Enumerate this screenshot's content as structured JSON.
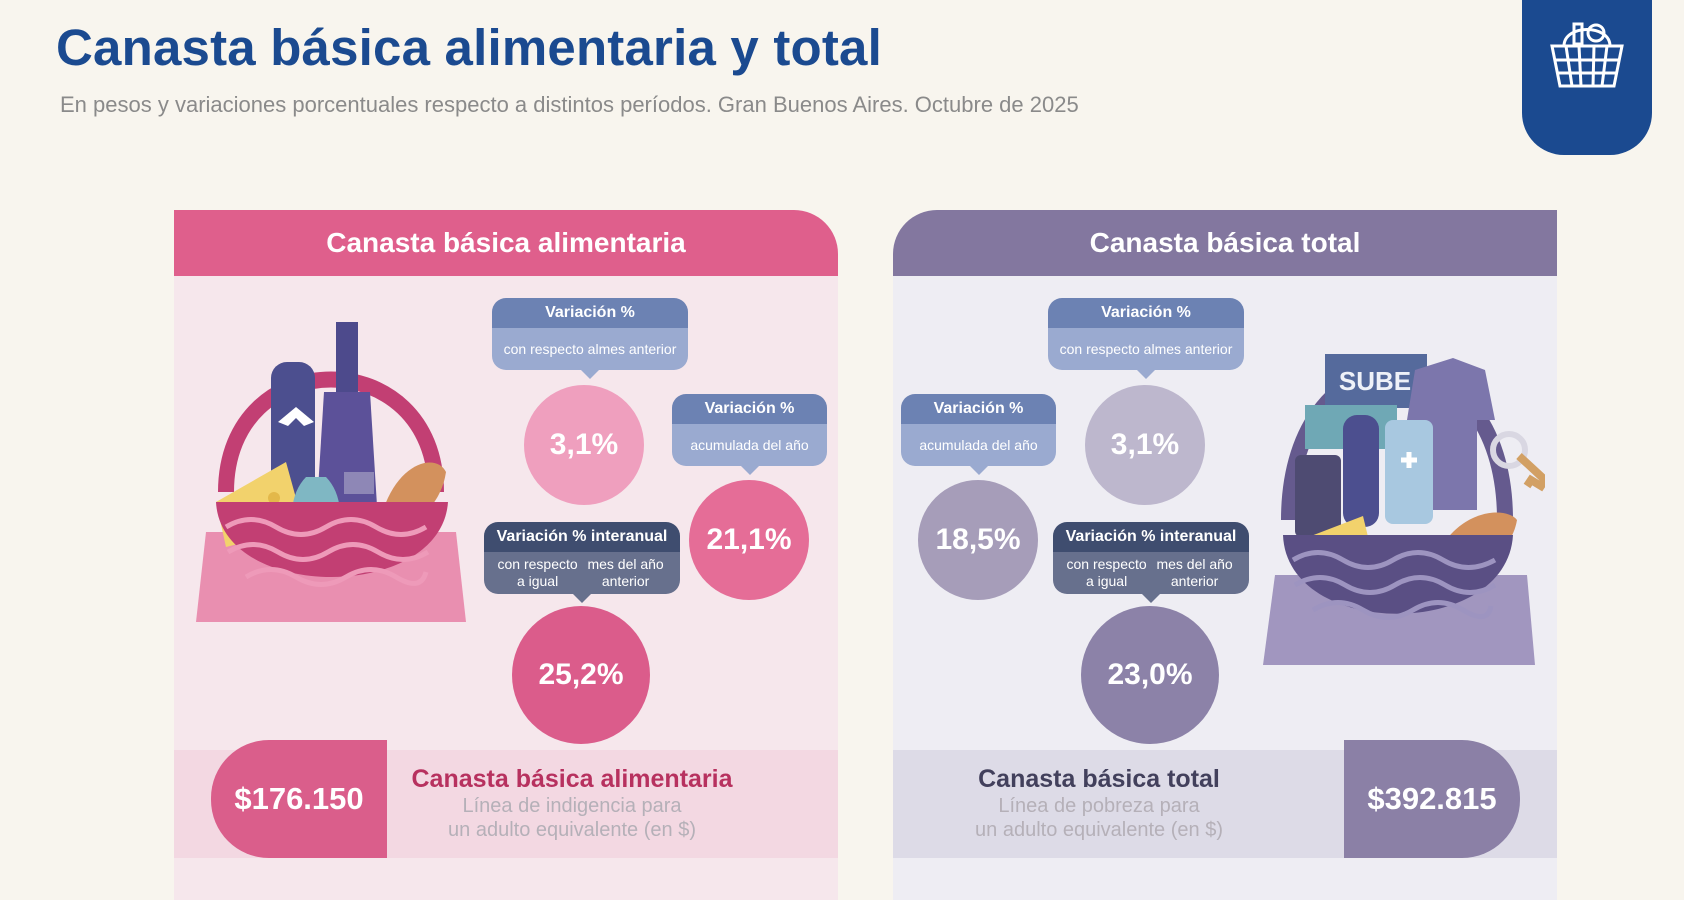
{
  "header": {
    "title": "Canasta básica alimentaria y total",
    "subtitle": "En pesos y variaciones porcentuales respecto a distintos períodos. Gran Buenos Aires. Octubre de 2025",
    "logo_icon": "shopping-basket-icon"
  },
  "left_panel": {
    "title": "Canasta básica alimentaria",
    "monthly": {
      "tag_title": "Variación %",
      "tag_lines": [
        "con respecto al",
        "mes anterior"
      ],
      "value": "3,1%"
    },
    "ytd": {
      "tag_title": "Variación %",
      "tag_lines": [
        "acumulada del año"
      ],
      "value": "21,1%"
    },
    "yoy": {
      "tag_title": "Variación % interanual",
      "tag_lines": [
        "con respecto a igual",
        "mes del año anterior"
      ],
      "value": "25,2%"
    },
    "price": "$176.150",
    "label_main": "Canasta básica alimentaria",
    "label_lines": [
      "Línea de indigencia para",
      "un adulto equivalente (en $)"
    ]
  },
  "right_panel": {
    "title": "Canasta básica total",
    "monthly": {
      "tag_title": "Variación %",
      "tag_lines": [
        "con respecto al",
        "mes anterior"
      ],
      "value": "3,1%"
    },
    "ytd": {
      "tag_title": "Variación %",
      "tag_lines": [
        "acumulada del año"
      ],
      "value": "18,5%"
    },
    "yoy": {
      "tag_title": "Variación % interanual",
      "tag_lines": [
        "con respecto a igual",
        "mes del año anterior"
      ],
      "value": "23,0%"
    },
    "price": "$392.815",
    "label_main": "Canasta básica total",
    "label_lines": [
      "Línea de pobreza para",
      "un adulto equivalente (en $)"
    ],
    "basket_card_text": "SUBE"
  },
  "colors": {
    "title_blue": "#1b4a90",
    "pink": "#df5f8c",
    "purple": "#83779f"
  }
}
